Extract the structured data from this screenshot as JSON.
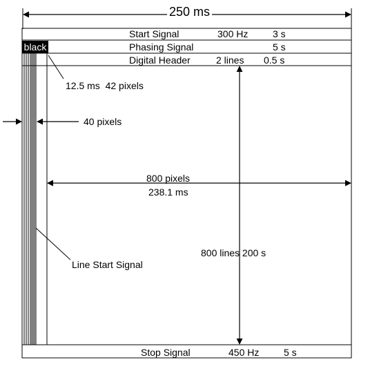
{
  "header": {
    "total_width": "250 ms"
  },
  "segments": {
    "start": {
      "name": "Start Signal",
      "freq": "300 Hz",
      "dur": "3 s"
    },
    "phasing": {
      "name": "Phasing Signal",
      "dur": "5 s"
    },
    "digital": {
      "name": "Digital Header",
      "lines": "2 lines",
      "dur": "0.5 s"
    },
    "stop": {
      "name": "Stop Signal",
      "freq": "450 Hz",
      "dur": "5 s"
    }
  },
  "black_label": "black",
  "annotations": {
    "phasing_time": "12.5 ms  42 pixels",
    "line_start_pixels": "40 pixels",
    "image_pixels": "800 pixels",
    "image_time": "238.1 ms",
    "image_lines": "800 lines 200 s",
    "line_start_signal": "Line Start Signal"
  },
  "colors": {
    "line": "#000000",
    "background": "#ffffff"
  }
}
